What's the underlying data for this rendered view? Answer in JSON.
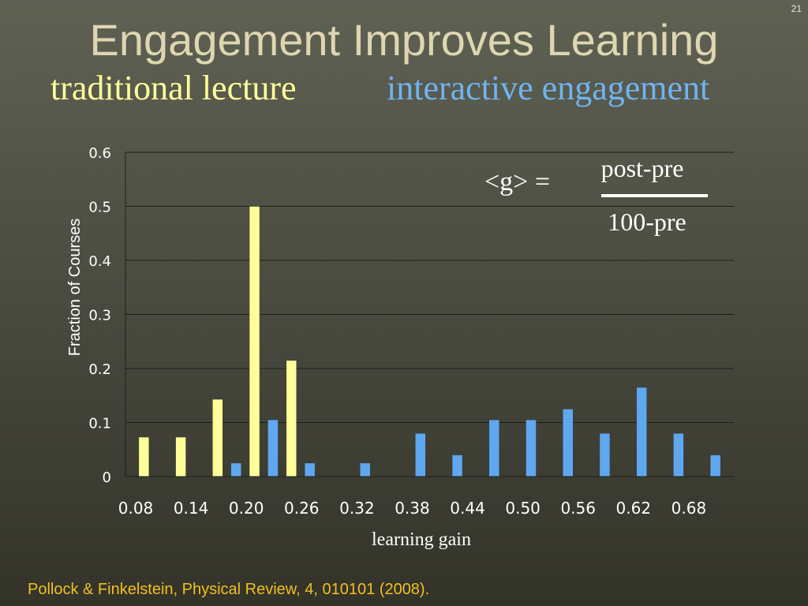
{
  "slide": {
    "number": "21",
    "title": "Engagement Improves Learning",
    "subtitle_left": "traditional lecture",
    "subtitle_right": "interactive engagement",
    "citation": "Pollock & Finkelstein, Physical Review, 4, 010101 (2008)."
  },
  "formula": {
    "lhs": "<g> =",
    "numerator": "post-pre",
    "denominator": "100-pre"
  },
  "colors": {
    "traditional": "#ffff99",
    "interactive": "#5fa8f0",
    "title": "#ddd6b0",
    "citation": "#f0c020"
  },
  "chart_data": {
    "type": "bar",
    "title": "",
    "xlabel": "learning gain",
    "ylabel": "Fraction of Courses",
    "xticks": [
      "0.08",
      "0.14",
      "0.20",
      "0.26",
      "0.32",
      "0.38",
      "0.44",
      "0.50",
      "0.56",
      "0.62",
      "0.68"
    ],
    "yticks": [
      "0",
      "0.1",
      "0.2",
      "0.3",
      "0.4",
      "0.5",
      "0.6"
    ],
    "ylim": [
      0,
      0.6
    ],
    "xlim": [
      0.08,
      0.74
    ],
    "grid": true,
    "series": [
      {
        "name": "traditional lecture",
        "color": "#ffff99",
        "points": [
          {
            "x": 0.1,
            "y": 0.073
          },
          {
            "x": 0.14,
            "y": 0.073
          },
          {
            "x": 0.18,
            "y": 0.143
          },
          {
            "x": 0.22,
            "y": 0.5
          },
          {
            "x": 0.26,
            "y": 0.215
          }
        ]
      },
      {
        "name": "interactive engagement",
        "color": "#5fa8f0",
        "points": [
          {
            "x": 0.2,
            "y": 0.025
          },
          {
            "x": 0.24,
            "y": 0.105
          },
          {
            "x": 0.28,
            "y": 0.025
          },
          {
            "x": 0.34,
            "y": 0.025
          },
          {
            "x": 0.4,
            "y": 0.08
          },
          {
            "x": 0.44,
            "y": 0.04
          },
          {
            "x": 0.48,
            "y": 0.105
          },
          {
            "x": 0.52,
            "y": 0.105
          },
          {
            "x": 0.56,
            "y": 0.125
          },
          {
            "x": 0.6,
            "y": 0.08
          },
          {
            "x": 0.64,
            "y": 0.165
          },
          {
            "x": 0.68,
            "y": 0.08
          },
          {
            "x": 0.72,
            "y": 0.04
          }
        ]
      }
    ]
  }
}
